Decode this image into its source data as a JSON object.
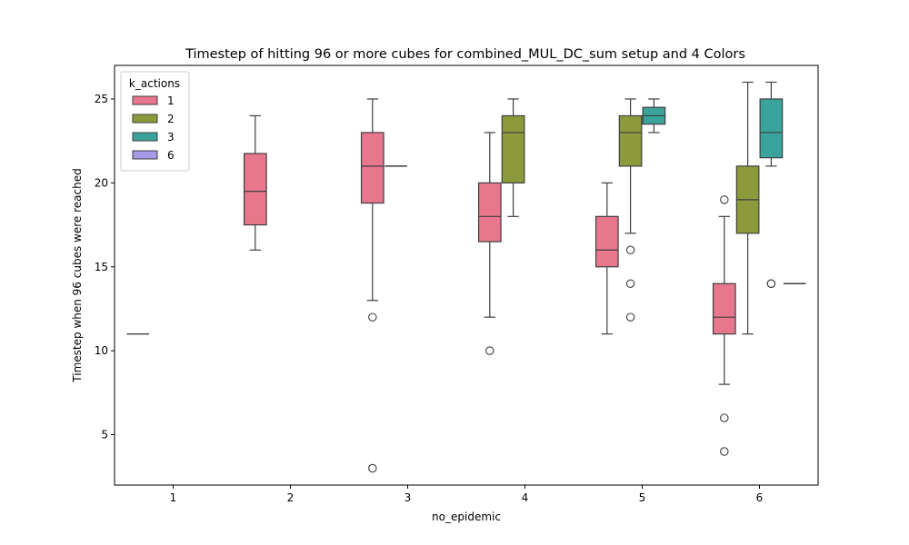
{
  "chart_data": {
    "type": "box",
    "title": "Timestep of hitting 96 or more cubes for combined_MUL_DC_sum setup and 4 Colors",
    "xlabel": "no_epidemic",
    "ylabel": "Timestep when 96 cubes were reached",
    "categories": [
      "1",
      "2",
      "3",
      "4",
      "5",
      "6"
    ],
    "ylim": [
      2,
      27
    ],
    "yticks": [
      5,
      10,
      15,
      20,
      25
    ],
    "grid": false,
    "legend": {
      "title": "k_actions",
      "placement": "top-left",
      "entries": [
        "1",
        "2",
        "3",
        "6"
      ]
    },
    "series": [
      {
        "name": "1",
        "color": "#e8768d",
        "boxes": [
          null,
          {
            "whislo": 16,
            "q1": 17.5,
            "med": 19.5,
            "q3": 21.75,
            "whishi": 24,
            "fliers": []
          },
          {
            "whislo": 13,
            "q1": 18.8,
            "med": 21,
            "q3": 23,
            "whishi": 25,
            "fliers": [
              12,
              3
            ]
          },
          {
            "whislo": 12,
            "q1": 16.5,
            "med": 18,
            "q3": 20,
            "whishi": 23,
            "fliers": [
              10
            ]
          },
          {
            "whislo": 11,
            "q1": 15,
            "med": 16,
            "q3": 18,
            "whishi": 20,
            "fliers": []
          },
          {
            "whislo": 8,
            "q1": 11,
            "med": 12,
            "q3": 14,
            "whishi": 18,
            "fliers": [
              19,
              6,
              4
            ]
          }
        ]
      },
      {
        "name": "2",
        "color": "#8c9a3c",
        "boxes": [
          null,
          null,
          null,
          {
            "whislo": 18,
            "q1": 20,
            "med": 23,
            "q3": 24,
            "whishi": 25,
            "fliers": []
          },
          {
            "whislo": 17,
            "q1": 21,
            "med": 23,
            "q3": 24,
            "whishi": 25,
            "fliers": [
              16,
              14,
              12
            ]
          },
          {
            "whislo": 11,
            "q1": 17,
            "med": 19,
            "q3": 21,
            "whishi": 26,
            "fliers": []
          }
        ]
      },
      {
        "name": "3",
        "color": "#3aa39b",
        "boxes": [
          null,
          null,
          null,
          null,
          {
            "whislo": 23,
            "q1": 23.5,
            "med": 24,
            "q3": 24.5,
            "whishi": 25,
            "fliers": []
          },
          {
            "whislo": 21,
            "q1": 21.5,
            "med": 23,
            "q3": 25,
            "whishi": 26,
            "fliers": [
              14,
              14
            ]
          }
        ]
      },
      {
        "name": "6",
        "color": "#a79be8",
        "boxes": [
          null,
          null,
          null,
          null,
          null,
          null
        ]
      }
    ],
    "singletons": [
      {
        "category": "1",
        "series": "1",
        "value": 11
      },
      {
        "category": "3",
        "series": "2",
        "value": 21
      },
      {
        "category": "6",
        "series": "6",
        "value": 14
      }
    ]
  }
}
